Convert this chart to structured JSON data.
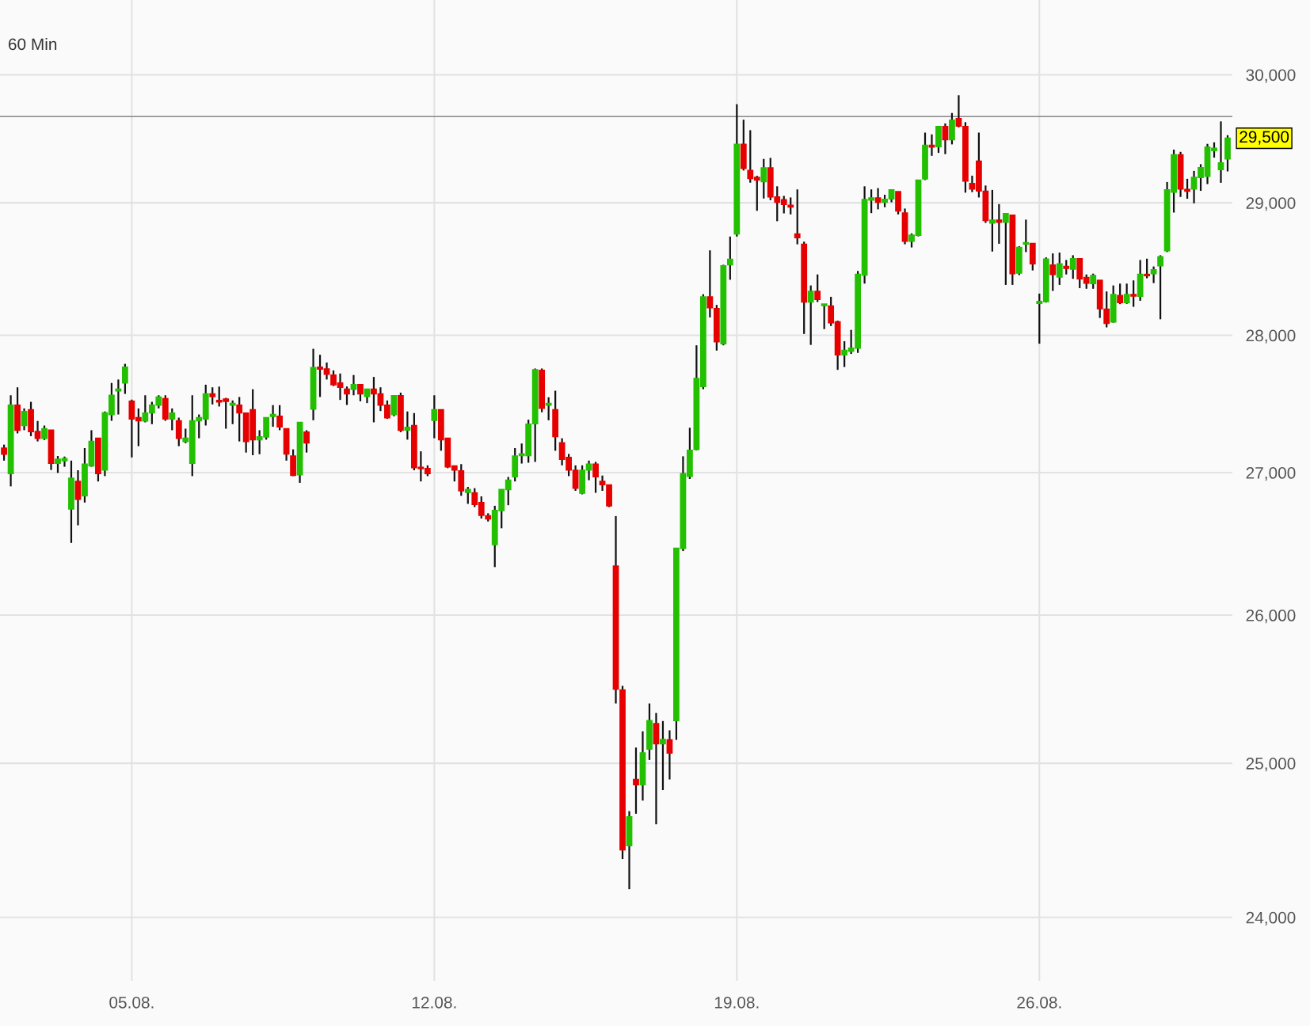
{
  "chart_data": {
    "type": "candlestick",
    "subtitle": "60 Min",
    "categories": [
      null,
      null,
      null,
      null,
      null,
      null,
      null,
      null,
      null,
      null,
      null,
      null,
      null,
      null,
      null,
      null,
      null,
      null,
      null,
      "05.08.",
      null,
      null,
      null,
      null,
      null,
      null,
      null,
      null,
      null,
      null,
      null,
      null,
      null,
      null,
      null,
      null,
      null,
      null,
      null,
      null,
      null,
      null,
      null,
      null,
      null,
      null,
      null,
      null,
      null,
      null,
      null,
      null,
      null,
      null,
      null,
      null,
      null,
      null,
      null,
      null,
      null,
      null,
      null,
      null,
      "12.08.",
      null,
      null,
      null,
      null,
      null,
      null,
      null,
      null,
      null,
      null,
      null,
      null,
      null,
      null,
      null,
      null,
      null,
      null,
      null,
      null,
      null,
      null,
      null,
      null,
      null,
      null,
      null,
      null,
      null,
      null,
      null,
      null,
      null,
      null,
      null,
      null,
      null,
      null,
      null,
      null,
      null,
      null,
      null,
      null,
      "19.08.",
      null,
      null,
      null,
      null,
      null,
      null,
      null,
      null,
      null,
      null,
      null,
      null,
      null,
      null,
      null,
      null,
      null,
      null,
      null,
      null,
      null,
      null,
      null,
      null,
      null,
      null,
      null,
      null,
      null,
      null,
      null,
      null,
      null,
      null,
      null,
      null,
      null,
      null,
      null,
      null,
      null,
      null,
      null,
      null,
      "26.08.",
      null,
      null,
      null,
      null,
      null,
      null,
      null,
      null,
      null,
      null,
      null,
      null,
      null,
      null,
      null,
      null,
      null,
      null,
      null,
      null,
      null,
      null,
      null,
      null,
      null,
      null,
      null,
      null
    ],
    "ohlc": [
      [
        27176,
        27201,
        27086,
        27132
      ],
      [
        26994,
        27559,
        26902,
        27487
      ],
      [
        27487,
        27617,
        27282,
        27305
      ],
      [
        27339,
        27463,
        27305,
        27441
      ],
      [
        27454,
        27511,
        27262,
        27295
      ],
      [
        27295,
        27372,
        27224,
        27247
      ],
      [
        27247,
        27339,
        27234,
        27316
      ],
      [
        27305,
        27305,
        27019,
        27067
      ],
      [
        27067,
        27119,
        26998,
        27096
      ],
      [
        27086,
        27115,
        27042,
        27100
      ],
      [
        26741,
        27086,
        26502,
        26960
      ],
      [
        26937,
        27017,
        26626,
        26810
      ],
      [
        26835,
        27176,
        26787,
        27061
      ],
      [
        27048,
        27305,
        27042,
        27224
      ],
      [
        27247,
        27247,
        26937,
        26994
      ],
      [
        27019,
        27441,
        26975,
        27431
      ],
      [
        27419,
        27649,
        27373,
        27559
      ],
      [
        27592,
        27674,
        27419,
        27603
      ],
      [
        27649,
        27789,
        27569,
        27764
      ],
      [
        27515,
        27527,
        27109,
        27387
      ],
      [
        27396,
        27463,
        27190,
        27374
      ],
      [
        27372,
        27559,
        27362,
        27429
      ],
      [
        27431,
        27511,
        27349,
        27487
      ],
      [
        27488,
        27559,
        27463,
        27546
      ],
      [
        27534,
        27559,
        27373,
        27387
      ],
      [
        27387,
        27463,
        27305,
        27429
      ],
      [
        27373,
        27396,
        27190,
        27247
      ],
      [
        27224,
        27316,
        27211,
        27247
      ],
      [
        27067,
        27559,
        26975,
        27373
      ],
      [
        27374,
        27419,
        27247,
        27396
      ],
      [
        27387,
        27636,
        27339,
        27569
      ],
      [
        27569,
        27617,
        27492,
        27550
      ],
      [
        27521,
        27622,
        27477,
        27511
      ],
      [
        27531,
        27540,
        27316,
        27515
      ],
      [
        27488,
        27521,
        27349,
        27500
      ],
      [
        27487,
        27546,
        27224,
        27431
      ],
      [
        27429,
        27429,
        27144,
        27224
      ],
      [
        27454,
        27603,
        27125,
        27237
      ],
      [
        27237,
        27305,
        27132,
        27257
      ],
      [
        27257,
        27396,
        27237,
        27396
      ],
      [
        27406,
        27487,
        27330,
        27419
      ],
      [
        27406,
        27487,
        27305,
        27329
      ],
      [
        27316,
        27316,
        27086,
        27134
      ],
      [
        27119,
        27167,
        26975,
        26981
      ],
      [
        26985,
        27362,
        26927,
        27362
      ],
      [
        27291,
        27305,
        27144,
        27214
      ],
      [
        27458,
        27900,
        27377,
        27761
      ],
      [
        27764,
        27856,
        27546,
        27751
      ],
      [
        27751,
        27799,
        27674,
        27713
      ],
      [
        27707,
        27741,
        27626,
        27636
      ],
      [
        27649,
        27718,
        27525,
        27617
      ],
      [
        27603,
        27623,
        27488,
        27569
      ],
      [
        27603,
        27707,
        27559,
        27636
      ],
      [
        27636,
        27636,
        27515,
        27569
      ],
      [
        27550,
        27603,
        27502,
        27603
      ],
      [
        27603,
        27693,
        27362,
        27569
      ],
      [
        27569,
        27617,
        27444,
        27487
      ],
      [
        27487,
        27521,
        27387,
        27396
      ],
      [
        27419,
        27555,
        27406,
        27555
      ],
      [
        27555,
        27578,
        27291,
        27305
      ],
      [
        27306,
        27441,
        27237,
        27326
      ],
      [
        27339,
        27429,
        27017,
        27036
      ],
      [
        27038,
        27153,
        26937,
        27029
      ],
      [
        27029,
        27052,
        26975,
        26994
      ],
      [
        27377,
        27559,
        27247,
        27454
      ],
      [
        27454,
        27454,
        27157,
        27237
      ],
      [
        27247,
        27247,
        27032,
        27042
      ],
      [
        27048,
        27048,
        26937,
        27019
      ],
      [
        27013,
        27061,
        26835,
        26870
      ],
      [
        26860,
        26898,
        26778,
        26879
      ],
      [
        26856,
        26889,
        26755,
        26774
      ],
      [
        26787,
        26831,
        26674,
        26697
      ],
      [
        26693,
        26711,
        26653,
        26672
      ],
      [
        26490,
        26764,
        26333,
        26730
      ],
      [
        26730,
        26879,
        26605,
        26879
      ],
      [
        26879,
        26969,
        26768,
        26946
      ],
      [
        26971,
        27176,
        26937,
        27119
      ],
      [
        27122,
        27209,
        27065,
        27134
      ],
      [
        27122,
        27381,
        27071,
        27349
      ],
      [
        27352,
        27755,
        27077,
        27745
      ],
      [
        27741,
        27755,
        27435,
        27464
      ],
      [
        27488,
        27544,
        27377,
        27500
      ],
      [
        27454,
        27592,
        27157,
        27259
      ],
      [
        27214,
        27247,
        27052,
        27096
      ],
      [
        27109,
        27134,
        26975,
        27019
      ],
      [
        27017,
        27052,
        26870,
        26889
      ],
      [
        26854,
        27052,
        26845,
        27017
      ],
      [
        27019,
        27086,
        26946,
        27061
      ],
      [
        27061,
        27077,
        26856,
        26971
      ],
      [
        26937,
        26979,
        26870,
        26914
      ],
      [
        26912,
        26912,
        26755,
        26764
      ],
      [
        26340,
        26691,
        25399,
        25496
      ],
      [
        25489,
        25518,
        24374,
        24433
      ],
      [
        24460,
        24685,
        24180,
        24647
      ],
      [
        24893,
        25104,
        24668,
        24858
      ],
      [
        24858,
        25212,
        24754,
        25068
      ],
      [
        25094,
        25399,
        25022,
        25284
      ],
      [
        25263,
        25335,
        24599,
        25130
      ],
      [
        25130,
        25281,
        24823,
        25158
      ],
      [
        25155,
        25219,
        24893,
        25068
      ],
      [
        25284,
        26464,
        25155,
        26464
      ],
      [
        26464,
        27117,
        26445,
        26992
      ],
      [
        26974,
        27323,
        26955,
        27160
      ],
      [
        27167,
        27926,
        27160,
        27681
      ],
      [
        27623,
        28306,
        27603,
        28286
      ],
      [
        28286,
        28637,
        28133,
        28206
      ],
      [
        28198,
        28226,
        27887,
        27953
      ],
      [
        27938,
        28528,
        27926,
        28520
      ],
      [
        28528,
        28742,
        28415,
        28569
      ],
      [
        28762,
        29767,
        28742,
        29453
      ],
      [
        29453,
        29645,
        29249,
        29265
      ],
      [
        29249,
        29563,
        29155,
        29188
      ],
      [
        29196,
        29208,
        28939,
        29176
      ],
      [
        29163,
        29339,
        29033,
        29269
      ],
      [
        29269,
        29347,
        29020,
        29045
      ],
      [
        29045,
        29127,
        28859,
        29004
      ],
      [
        29024,
        29053,
        28919,
        28988
      ],
      [
        28980,
        29041,
        28911,
        28968
      ],
      [
        28762,
        29103,
        28683,
        28733
      ],
      [
        28683,
        28703,
        28010,
        28248
      ],
      [
        28248,
        28372,
        27929,
        28327
      ],
      [
        28327,
        28455,
        28248,
        28267
      ],
      [
        28222,
        28232,
        28046,
        28232
      ],
      [
        28218,
        28287,
        28069,
        28093
      ],
      [
        28099,
        28109,
        27745,
        27856
      ],
      [
        27856,
        27956,
        27766,
        27889
      ],
      [
        27882,
        28040,
        27862,
        27905
      ],
      [
        27905,
        28481,
        27870,
        28455
      ],
      [
        28450,
        29127,
        28386,
        29025
      ],
      [
        29021,
        29103,
        28921,
        29037
      ],
      [
        29037,
        29113,
        28950,
        29004
      ],
      [
        29004,
        29062,
        28966,
        29027
      ],
      [
        29031,
        29099,
        29004,
        29099
      ],
      [
        29086,
        29086,
        28911,
        28937
      ],
      [
        28921,
        28956,
        28683,
        28707
      ],
      [
        28707,
        28766,
        28659,
        28752
      ],
      [
        28752,
        29175,
        28743,
        29175
      ],
      [
        29185,
        29544,
        29175,
        29445
      ],
      [
        29445,
        29530,
        29363,
        29431
      ],
      [
        29435,
        29591,
        29386,
        29591
      ],
      [
        29591,
        29616,
        29376,
        29489
      ],
      [
        29489,
        29698,
        29452,
        29641
      ],
      [
        29653,
        29838,
        29585,
        29595
      ],
      [
        29591,
        29626,
        29078,
        29168
      ],
      [
        29148,
        29209,
        29082,
        29107
      ],
      [
        29322,
        29544,
        29041,
        29092
      ],
      [
        29088,
        29133,
        28846,
        28865
      ],
      [
        28846,
        29099,
        28628,
        28867
      ],
      [
        28867,
        28990,
        28687,
        28851
      ],
      [
        28851,
        28917,
        28376,
        28917
      ],
      [
        28905,
        28905,
        28376,
        28461
      ],
      [
        28465,
        28669,
        28450,
        28659
      ],
      [
        28685,
        28871,
        28624,
        28695
      ],
      [
        28689,
        28689,
        28485,
        28535
      ],
      [
        28238,
        28311,
        27938,
        28252
      ],
      [
        28252,
        28584,
        28244,
        28570
      ],
      [
        28525,
        28614,
        28331,
        28455
      ],
      [
        28436,
        28620,
        28376,
        28535
      ],
      [
        28515,
        28564,
        28455,
        28501
      ],
      [
        28495,
        28600,
        28422,
        28574
      ],
      [
        28574,
        28574,
        28352,
        28422
      ],
      [
        28432,
        28455,
        28347,
        28390
      ],
      [
        28386,
        28461,
        28347,
        28446
      ],
      [
        28410,
        28410,
        28129,
        28198
      ],
      [
        28194,
        28327,
        28059,
        28089
      ],
      [
        28099,
        28372,
        28093,
        28303
      ],
      [
        28297,
        28386,
        28232,
        28244
      ],
      [
        28244,
        28386,
        28234,
        28303
      ],
      [
        28303,
        28410,
        28212,
        28293
      ],
      [
        28291,
        28564,
        28257,
        28455
      ],
      [
        28455,
        28574,
        28426,
        28446
      ],
      [
        28461,
        28515,
        28390,
        28489
      ],
      [
        28521,
        28600,
        28119,
        28588
      ],
      [
        28634,
        29160,
        28624,
        29099
      ],
      [
        29082,
        29411,
        28925,
        29370
      ],
      [
        29370,
        29394,
        29045,
        29107
      ],
      [
        29103,
        29185,
        29031,
        29090
      ],
      [
        29107,
        29246,
        28996,
        29195
      ],
      [
        29195,
        29298,
        29092,
        29271
      ],
      [
        29205,
        29456,
        29144,
        29431
      ],
      [
        29404,
        29468,
        29349,
        29421
      ],
      [
        29257,
        29632,
        29154,
        29308
      ],
      [
        29339,
        29524,
        29242,
        29500
      ]
    ],
    "colors": [
      "#e60000",
      "#22c000",
      "#e60000",
      "#22c000",
      "#e60000",
      "#e60000",
      "#22c000",
      "#e60000",
      "#22c000",
      "#22c000",
      "#22c000",
      "#e60000",
      "#22c000",
      "#22c000",
      "#e60000",
      "#22c000",
      "#22c000",
      "#22c000",
      "#22c000",
      "#e60000",
      "#e60000",
      "#22c000",
      "#22c000",
      "#22c000",
      "#e60000",
      "#22c000",
      "#e60000",
      "#22c000",
      "#22c000",
      "#22c000",
      "#22c000",
      "#e60000",
      "#e60000",
      "#e60000",
      "#22c000",
      "#e60000",
      "#e60000",
      "#e60000",
      "#22c000",
      "#22c000",
      "#22c000",
      "#e60000",
      "#e60000",
      "#e60000",
      "#22c000",
      "#e60000",
      "#22c000",
      "#e60000",
      "#e60000",
      "#e60000",
      "#e60000",
      "#e60000",
      "#22c000",
      "#e60000",
      "#22c000",
      "#e60000",
      "#e60000",
      "#e60000",
      "#22c000",
      "#e60000",
      "#22c000",
      "#e60000",
      "#e60000",
      "#e60000",
      "#22c000",
      "#e60000",
      "#e60000",
      "#e60000",
      "#e60000",
      "#22c000",
      "#e60000",
      "#e60000",
      "#e60000",
      "#22c000",
      "#22c000",
      "#22c000",
      "#22c000",
      "#22c000",
      "#22c000",
      "#22c000",
      "#e60000",
      "#22c000",
      "#e60000",
      "#e60000",
      "#e60000",
      "#e60000",
      "#22c000",
      "#22c000",
      "#e60000",
      "#e60000",
      "#e60000",
      "#e60000",
      "#e60000",
      "#22c000",
      "#e60000",
      "#22c000",
      "#22c000",
      "#e60000",
      "#22c000",
      "#e60000",
      "#22c000",
      "#22c000",
      "#22c000",
      "#22c000",
      "#22c000",
      "#e60000",
      "#e60000",
      "#22c000",
      "#22c000",
      "#22c000",
      "#e60000",
      "#e60000",
      "#e60000",
      "#22c000",
      "#e60000",
      "#e60000",
      "#e60000",
      "#e60000",
      "#e60000",
      "#e60000",
      "#22c000",
      "#e60000",
      "#22c000",
      "#e60000",
      "#e60000",
      "#22c000",
      "#22c000",
      "#22c000",
      "#22c000",
      "#22c000",
      "#e60000",
      "#22c000",
      "#22c000",
      "#e60000",
      "#e60000",
      "#22c000",
      "#22c000",
      "#22c000",
      "#e60000",
      "#22c000",
      "#e60000",
      "#22c000",
      "#e60000",
      "#e60000",
      "#e60000",
      "#e60000",
      "#e60000",
      "#22c000",
      "#e60000",
      "#22c000",
      "#e60000",
      "#22c000",
      "#22c000",
      "#e60000",
      "#22c000",
      "#22c000",
      "#e60000",
      "#22c000",
      "#e60000",
      "#22c000",
      "#e60000",
      "#e60000",
      "#22c000",
      "#e60000",
      "#e60000",
      "#22c000",
      "#e60000",
      "#22c000",
      "#e60000",
      "#22c000",
      "#e60000",
      "#22c000",
      "#22c000",
      "#22c000",
      "#22c000",
      "#e60000",
      "#e60000",
      "#22c000",
      "#22c000",
      "#22c000",
      "#22c000",
      "#22c000",
      "#22c000"
    ],
    "log": true,
    "ylim": [
      23600,
      30600
    ],
    "yticks": [
      {
        "value": 24000,
        "label": "24,000"
      },
      {
        "value": 25000,
        "label": "25,000"
      },
      {
        "value": 26000,
        "label": "26,000"
      },
      {
        "value": 27000,
        "label": "27,000"
      },
      {
        "value": 28000,
        "label": "28,000"
      },
      {
        "value": 29000,
        "label": "29,000"
      },
      {
        "value": 30000,
        "label": "30,000"
      }
    ],
    "grid": true,
    "ref_lines": [
      {
        "axis": "y",
        "value": 29670,
        "color": "#888888"
      }
    ],
    "annotations": [
      "29,500"
    ]
  }
}
